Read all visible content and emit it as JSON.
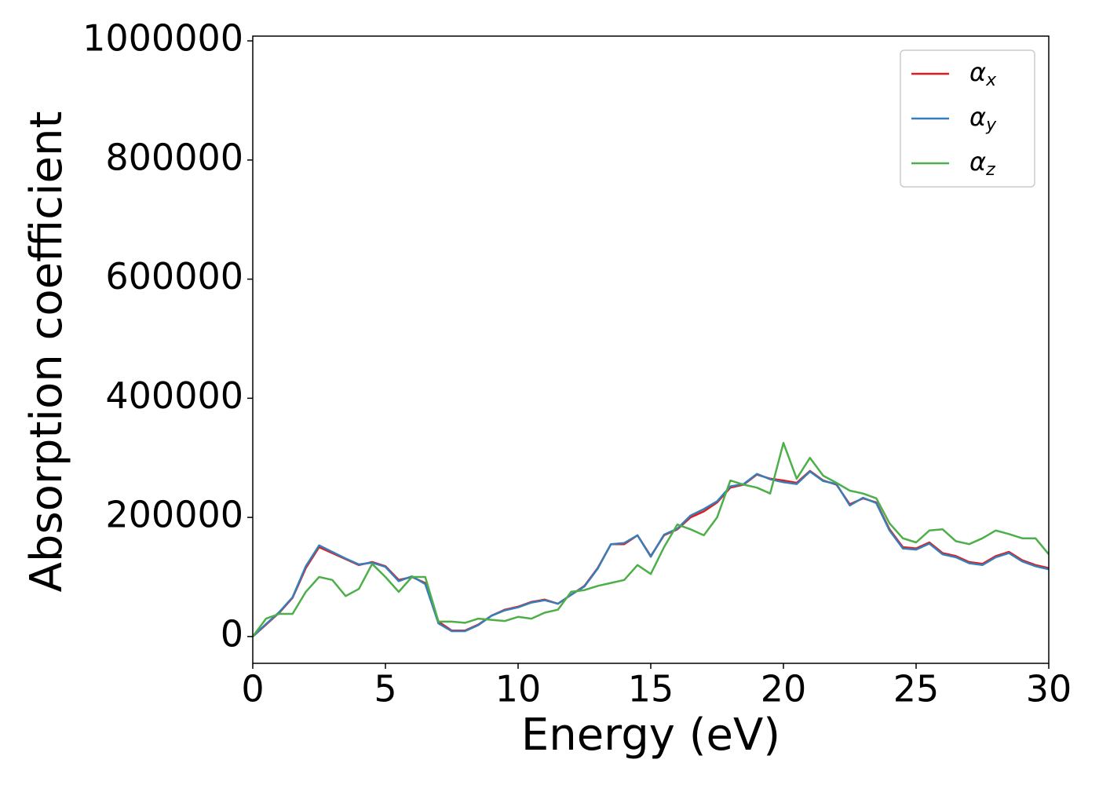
{
  "chart_data": {
    "type": "line",
    "xlabel": "Energy (eV)",
    "ylabel": "Absorption coefficient",
    "x": [
      0,
      0.5,
      1,
      1.5,
      2,
      2.5,
      3,
      3.5,
      4,
      4.5,
      5,
      5.5,
      6,
      6.5,
      7,
      7.5,
      8,
      8.5,
      9,
      9.5,
      10,
      10.5,
      11,
      11.5,
      12,
      12.5,
      13,
      13.5,
      14,
      14.5,
      15,
      15.5,
      16,
      16.5,
      17,
      17.5,
      18,
      18.5,
      19,
      19.5,
      20,
      20.5,
      21,
      21.5,
      22,
      22.5,
      23,
      23.5,
      24,
      24.5,
      25,
      25.5,
      26,
      26.5,
      27,
      27.5,
      28,
      28.5,
      29,
      29.5,
      30
    ],
    "series": [
      {
        "name": "αx",
        "color": "#e41a1c",
        "values": [
          0,
          20000,
          40000,
          65000,
          115000,
          150000,
          140000,
          130000,
          120000,
          125000,
          118000,
          95000,
          100000,
          90000,
          25000,
          10000,
          10000,
          20000,
          35000,
          45000,
          50000,
          58000,
          62000,
          55000,
          70000,
          85000,
          115000,
          155000,
          155000,
          170000,
          135000,
          170000,
          180000,
          200000,
          210000,
          225000,
          250000,
          255000,
          272000,
          265000,
          262000,
          258000,
          278000,
          262000,
          255000,
          222000,
          232000,
          225000,
          180000,
          150000,
          148000,
          158000,
          140000,
          135000,
          125000,
          122000,
          135000,
          142000,
          128000,
          120000,
          115000
        ]
      },
      {
        "name": "αy",
        "color": "#377eb8",
        "values": [
          0,
          21000,
          41000,
          66000,
          118000,
          153000,
          142000,
          131000,
          121000,
          124000,
          117000,
          93000,
          101000,
          88000,
          22000,
          9000,
          9000,
          19000,
          35000,
          44000,
          49000,
          57000,
          61000,
          55000,
          70000,
          84000,
          114000,
          155000,
          157000,
          170000,
          134000,
          171000,
          181000,
          203000,
          214000,
          227000,
          252000,
          256000,
          273000,
          264000,
          259000,
          256000,
          277000,
          261000,
          256000,
          220000,
          233000,
          224000,
          178000,
          148000,
          146000,
          156000,
          138000,
          133000,
          123000,
          120000,
          133000,
          140000,
          126000,
          118000,
          113000
        ]
      },
      {
        "name": "αz",
        "color": "#4daf4a",
        "values": [
          0,
          30000,
          38000,
          38000,
          75000,
          100000,
          95000,
          68000,
          80000,
          122000,
          100000,
          75000,
          100000,
          100000,
          25000,
          25000,
          23000,
          30000,
          28000,
          26000,
          33000,
          30000,
          40000,
          45000,
          75000,
          78000,
          85000,
          90000,
          95000,
          120000,
          105000,
          150000,
          188000,
          180000,
          170000,
          200000,
          262000,
          255000,
          250000,
          240000,
          325000,
          265000,
          300000,
          270000,
          258000,
          245000,
          240000,
          232000,
          190000,
          165000,
          158000,
          178000,
          180000,
          160000,
          155000,
          165000,
          178000,
          172000,
          165000,
          165000,
          138000
        ]
      }
    ],
    "xlim": [
      0,
      30
    ],
    "xticks": [
      0,
      5,
      10,
      15,
      20,
      25,
      30
    ],
    "ylim": [
      -45000,
      1008000
    ],
    "yticks": [
      0,
      200000,
      400000,
      600000,
      800000,
      1000000
    ],
    "grid": false,
    "legend": "upper right"
  }
}
